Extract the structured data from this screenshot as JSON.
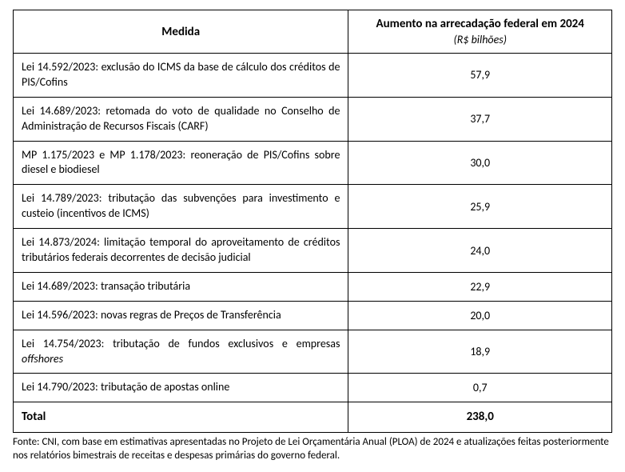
{
  "table": {
    "columns": {
      "left": "Medida",
      "right_main": "Aumento na arrecadação federal em 2024",
      "right_sub": "(R$ bilhões)"
    },
    "rows": [
      {
        "desc": "Lei 14.592/2023: exclusão do ICMS da base de cálculo dos créditos de PIS/Cofins",
        "value": "57,9"
      },
      {
        "desc": "Lei 14.689/2023: retomada do voto de qualidade no Conselho de Administração de Recursos Fiscais (CARF)",
        "value": "37,7"
      },
      {
        "desc": "MP 1.175/2023 e MP 1.178/2023: reoneração de PIS/Cofins sobre diesel e biodiesel",
        "value": "30,0"
      },
      {
        "desc": "Lei 14.789/2023: tributação das subvenções para investimento e custeio (incentivos de ICMS)",
        "value": "25,9"
      },
      {
        "desc": "Lei 14.873/2024: limitação temporal do aproveitamento de créditos tributários federais decorrentes de decisão judicial",
        "value": "24,0"
      },
      {
        "desc": "Lei 14.689/2023: transação tributária",
        "value": "22,9"
      },
      {
        "desc": "Lei 14.596/2023: novas regras de Preços de Transferência",
        "value": "20,0"
      },
      {
        "desc": "Lei 14.754/2023: tributação de fundos exclusivos e empresas ",
        "desc_italic": "offshores",
        "value": "18,9"
      },
      {
        "desc": "Lei 14.790/2023: tributação de apostas online",
        "value": "0,7"
      }
    ],
    "total": {
      "label": "Total",
      "value": "238,0"
    },
    "styling": {
      "border_color": "#000000",
      "background_color": "#ffffff",
      "font_family": "Calibri",
      "header_fontsize": 15,
      "header_fontweight": "bold",
      "sub_header_fontstyle": "italic",
      "sub_header_fontsize": 14,
      "cell_fontsize": 14,
      "total_fontweight": "bold",
      "col_left_width_pct": 56,
      "col_right_width_pct": 44,
      "desc_align": "justify",
      "value_align": "center"
    }
  },
  "source_note": "Fonte: CNI, com base em estimativas apresentadas no Projeto de Lei Orçamentária Anual (PLOA) de 2024 e atualizações feitas posteriormente nos relatórios bimestrais de receitas e despesas primárias do governo federal.",
  "source_styling": {
    "fontsize": 13,
    "align": "left"
  }
}
